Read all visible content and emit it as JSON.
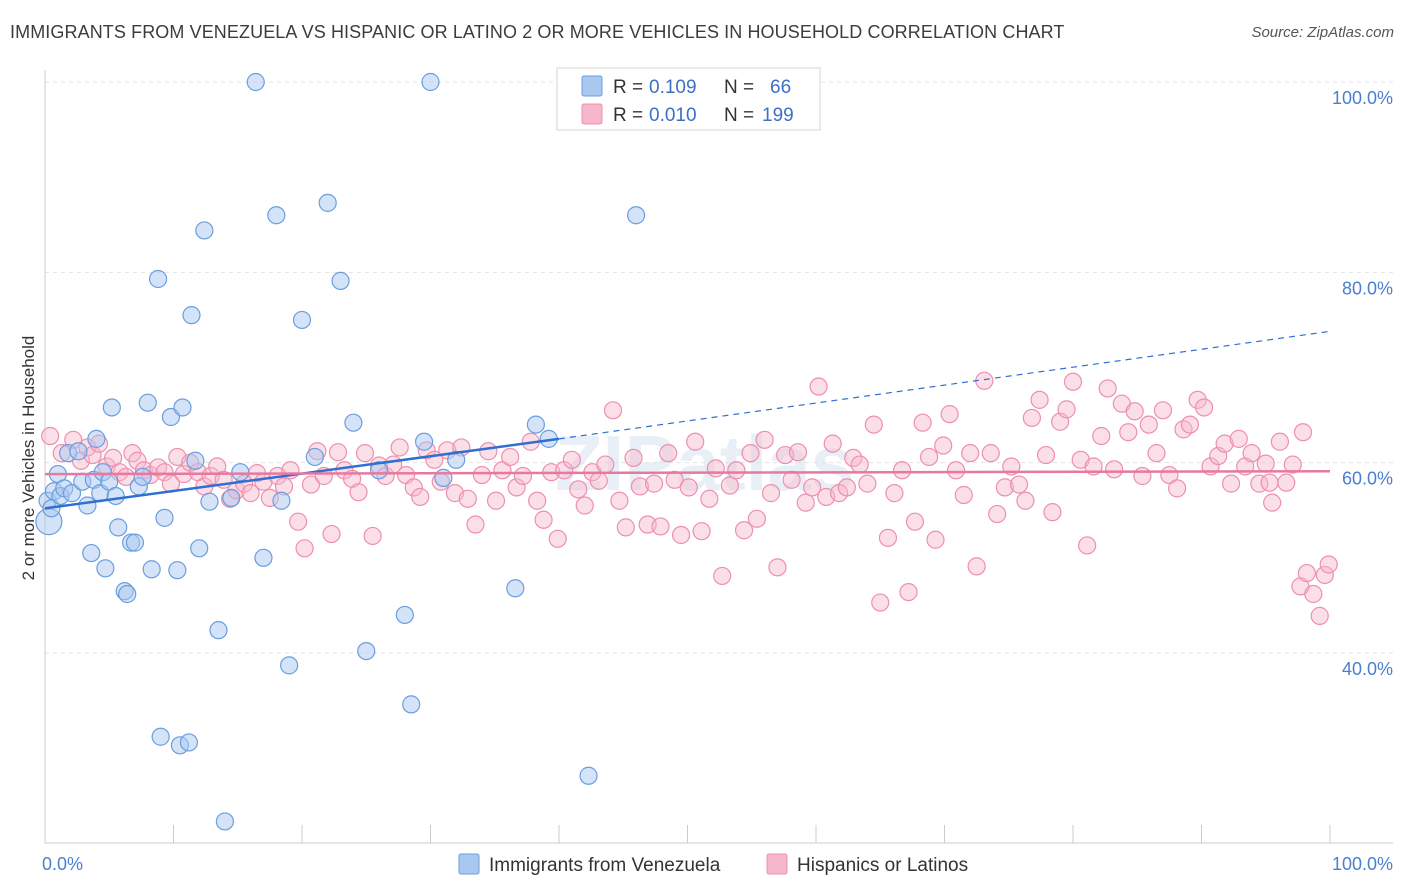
{
  "header": {
    "title": "IMMIGRANTS FROM VENEZUELA VS HISPANIC OR LATINO 2 OR MORE VEHICLES IN HOUSEHOLD CORRELATION CHART",
    "source": "Source: ZipAtlas.com"
  },
  "watermark": "ZIPatlas",
  "legend": {
    "rows": [
      {
        "r_label": "R =",
        "r_value": "0.109",
        "n_label": "N =",
        "n_value": "66",
        "color": "#a9c8f0"
      },
      {
        "r_label": "R =",
        "r_value": "0.010",
        "n_label": "N =",
        "n_value": "199",
        "color": "#f7b7cb"
      }
    ]
  },
  "bottom_legend": [
    {
      "label": "Immigrants from Venezuela",
      "color": "#a9c8f0"
    },
    {
      "label": "Hispanics or Latinos",
      "color": "#f7b7cb"
    }
  ],
  "chart_data": {
    "type": "scatter",
    "title": "IMMIGRANTS FROM VENEZUELA VS HISPANIC OR LATINO 2 OR MORE VEHICLES IN HOUSEHOLD CORRELATION CHART",
    "xlabel": "",
    "ylabel": "2 or more Vehicles in Household",
    "xlim": [
      0,
      100
    ],
    "ylim": [
      20,
      102
    ],
    "x_tick_labels": [
      "0.0%",
      "100.0%"
    ],
    "y_ticks": [
      40,
      60,
      80,
      100
    ],
    "y_tick_labels": [
      "40.0%",
      "60.0%",
      "80.0%",
      "100.0%"
    ],
    "grid": true,
    "colors": {
      "blue_fill": "#a9c8f0",
      "blue_stroke": "#6a9ee0",
      "blue_line": "#2f6fd0",
      "pink_fill": "#f7b7cb",
      "pink_stroke": "#ee8fae",
      "pink_line": "#e6799f"
    },
    "series": [
      {
        "name": "Immigrants from Venezuela",
        "r": 0.109,
        "n": 66,
        "trend": {
          "x0": 0,
          "y0": 55.2,
          "x1": 40,
          "y1": 62.5,
          "dashed_to_x": 100,
          "dashed_to_y": 73.8
        },
        "points": [
          [
            0.3,
            53.8
          ],
          [
            0.2,
            56.0
          ],
          [
            0.5,
            55.2
          ],
          [
            0.7,
            57.0
          ],
          [
            1.0,
            58.8
          ],
          [
            1.2,
            56.5
          ],
          [
            1.5,
            57.3
          ],
          [
            1.8,
            61.0
          ],
          [
            2.1,
            56.8
          ],
          [
            2.6,
            61.2
          ],
          [
            2.9,
            58.0
          ],
          [
            3.3,
            55.5
          ],
          [
            3.6,
            50.5
          ],
          [
            3.8,
            58.2
          ],
          [
            4.0,
            62.5
          ],
          [
            4.3,
            56.8
          ],
          [
            4.5,
            59.0
          ],
          [
            4.7,
            48.9
          ],
          [
            5.0,
            58.0
          ],
          [
            5.2,
            65.8
          ],
          [
            5.5,
            56.5
          ],
          [
            5.7,
            53.2
          ],
          [
            6.2,
            46.5
          ],
          [
            6.4,
            46.2
          ],
          [
            6.7,
            51.6
          ],
          [
            7.0,
            51.6
          ],
          [
            7.3,
            57.5
          ],
          [
            7.6,
            58.5
          ],
          [
            8.0,
            66.3
          ],
          [
            8.3,
            48.8
          ],
          [
            8.8,
            79.3
          ],
          [
            9.3,
            54.2
          ],
          [
            9.8,
            64.8
          ],
          [
            10.3,
            48.7
          ],
          [
            10.7,
            65.8
          ],
          [
            11.4,
            75.5
          ],
          [
            11.7,
            60.2
          ],
          [
            12.0,
            51.0
          ],
          [
            12.4,
            84.4
          ],
          [
            12.8,
            55.9
          ],
          [
            13.5,
            42.4
          ],
          [
            14.5,
            56.3
          ],
          [
            15.2,
            59.0
          ],
          [
            16.4,
            100.0
          ],
          [
            17.0,
            50.0
          ],
          [
            18.0,
            86.0
          ],
          [
            18.4,
            56.0
          ],
          [
            19.0,
            38.7
          ],
          [
            20.0,
            75.0
          ],
          [
            21.0,
            60.6
          ],
          [
            22.0,
            87.3
          ],
          [
            23.0,
            79.1
          ],
          [
            24.0,
            64.2
          ],
          [
            25.0,
            40.2
          ],
          [
            26.0,
            59.2
          ],
          [
            28.0,
            44.0
          ],
          [
            28.5,
            34.6
          ],
          [
            29.5,
            62.2
          ],
          [
            30.0,
            100.0
          ],
          [
            31.0,
            58.4
          ],
          [
            32.0,
            60.3
          ],
          [
            38.2,
            64.0
          ],
          [
            39.2,
            62.5
          ],
          [
            36.6,
            46.8
          ],
          [
            42.3,
            27.1
          ],
          [
            46.0,
            86.0
          ],
          [
            9.0,
            31.2
          ],
          [
            10.5,
            30.3
          ],
          [
            11.2,
            30.6
          ],
          [
            14.0,
            22.3
          ]
        ]
      },
      {
        "name": "Hispanics or Latinos",
        "r": 0.01,
        "n": 199,
        "trend": {
          "x0": 0,
          "y0": 58.8,
          "x1": 100,
          "y1": 59.1
        },
        "points": [
          [
            0.4,
            62.8
          ],
          [
            1.3,
            61.0
          ],
          [
            2.2,
            62.4
          ],
          [
            2.8,
            60.2
          ],
          [
            3.3,
            61.6
          ],
          [
            3.7,
            60.8
          ],
          [
            4.2,
            62.0
          ],
          [
            4.8,
            59.6
          ],
          [
            5.3,
            60.5
          ],
          [
            5.8,
            59.0
          ],
          [
            6.3,
            58.5
          ],
          [
            6.8,
            61.0
          ],
          [
            7.2,
            60.2
          ],
          [
            7.7,
            59.2
          ],
          [
            8.2,
            58.7
          ],
          [
            8.8,
            59.5
          ],
          [
            9.3,
            59.0
          ],
          [
            9.8,
            57.8
          ],
          [
            10.3,
            60.6
          ],
          [
            10.8,
            58.8
          ],
          [
            11.3,
            60.0
          ],
          [
            11.9,
            59.0
          ],
          [
            12.4,
            57.5
          ],
          [
            12.9,
            58.6
          ],
          [
            13.4,
            59.6
          ],
          [
            13.9,
            58.2
          ],
          [
            14.4,
            56.2
          ],
          [
            14.9,
            57.1
          ],
          [
            15.5,
            57.8
          ],
          [
            16.0,
            56.8
          ],
          [
            16.5,
            58.9
          ],
          [
            17.0,
            58.0
          ],
          [
            17.5,
            56.3
          ],
          [
            18.1,
            58.6
          ],
          [
            18.6,
            57.5
          ],
          [
            19.1,
            59.2
          ],
          [
            19.7,
            53.8
          ],
          [
            20.2,
            51.0
          ],
          [
            20.7,
            57.7
          ],
          [
            21.2,
            61.2
          ],
          [
            21.7,
            58.6
          ],
          [
            22.3,
            52.5
          ],
          [
            22.8,
            61.1
          ],
          [
            23.3,
            59.2
          ],
          [
            23.9,
            58.3
          ],
          [
            24.4,
            56.9
          ],
          [
            24.9,
            61.0
          ],
          [
            25.5,
            52.3
          ],
          [
            26.0,
            59.7
          ],
          [
            26.5,
            58.6
          ],
          [
            27.1,
            59.8
          ],
          [
            27.6,
            61.6
          ],
          [
            28.1,
            58.7
          ],
          [
            28.7,
            57.4
          ],
          [
            29.2,
            56.4
          ],
          [
            29.7,
            61.3
          ],
          [
            30.3,
            60.3
          ],
          [
            30.8,
            58.0
          ],
          [
            31.3,
            61.3
          ],
          [
            31.9,
            56.8
          ],
          [
            32.4,
            61.6
          ],
          [
            32.9,
            56.2
          ],
          [
            33.5,
            53.5
          ],
          [
            34.0,
            58.7
          ],
          [
            34.5,
            61.2
          ],
          [
            35.1,
            56.0
          ],
          [
            35.6,
            59.2
          ],
          [
            36.2,
            60.6
          ],
          [
            36.7,
            57.4
          ],
          [
            37.2,
            58.6
          ],
          [
            37.8,
            62.2
          ],
          [
            38.3,
            56.0
          ],
          [
            38.8,
            54.0
          ],
          [
            39.4,
            59.0
          ],
          [
            39.9,
            52.0
          ],
          [
            40.4,
            59.2
          ],
          [
            41.0,
            60.3
          ],
          [
            41.5,
            57.2
          ],
          [
            42.0,
            55.5
          ],
          [
            42.6,
            59.0
          ],
          [
            43.1,
            58.1
          ],
          [
            43.6,
            59.8
          ],
          [
            44.2,
            65.5
          ],
          [
            44.7,
            56.0
          ],
          [
            45.2,
            53.2
          ],
          [
            45.8,
            60.5
          ],
          [
            46.3,
            57.5
          ],
          [
            46.9,
            53.5
          ],
          [
            47.4,
            57.8
          ],
          [
            47.9,
            53.3
          ],
          [
            48.5,
            61.0
          ],
          [
            49.0,
            58.2
          ],
          [
            49.5,
            52.4
          ],
          [
            50.1,
            57.4
          ],
          [
            50.6,
            62.2
          ],
          [
            51.1,
            52.8
          ],
          [
            51.7,
            56.2
          ],
          [
            52.2,
            59.4
          ],
          [
            52.7,
            48.1
          ],
          [
            53.3,
            57.6
          ],
          [
            53.8,
            59.2
          ],
          [
            54.4,
            52.9
          ],
          [
            54.9,
            61.0
          ],
          [
            55.4,
            54.1
          ],
          [
            56.0,
            62.4
          ],
          [
            56.5,
            56.8
          ],
          [
            57.0,
            49.0
          ],
          [
            57.6,
            60.8
          ],
          [
            58.1,
            58.2
          ],
          [
            58.6,
            61.1
          ],
          [
            59.2,
            55.8
          ],
          [
            59.7,
            57.4
          ],
          [
            60.2,
            68.0
          ],
          [
            60.8,
            56.4
          ],
          [
            61.3,
            62.0
          ],
          [
            61.8,
            56.8
          ],
          [
            62.4,
            57.4
          ],
          [
            62.9,
            60.5
          ],
          [
            63.4,
            59.8
          ],
          [
            64.0,
            57.8
          ],
          [
            64.5,
            64.0
          ],
          [
            65.0,
            45.3
          ],
          [
            65.6,
            52.1
          ],
          [
            66.1,
            56.8
          ],
          [
            66.7,
            59.2
          ],
          [
            67.2,
            46.4
          ],
          [
            67.7,
            53.8
          ],
          [
            68.3,
            64.2
          ],
          [
            68.8,
            60.6
          ],
          [
            69.3,
            51.9
          ],
          [
            69.9,
            61.8
          ],
          [
            70.4,
            65.1
          ],
          [
            70.9,
            59.2
          ],
          [
            71.5,
            56.6
          ],
          [
            72.0,
            61.0
          ],
          [
            72.5,
            49.1
          ],
          [
            73.1,
            68.6
          ],
          [
            73.6,
            61.0
          ],
          [
            74.1,
            54.6
          ],
          [
            74.7,
            57.4
          ],
          [
            75.2,
            59.6
          ],
          [
            75.8,
            57.7
          ],
          [
            76.3,
            56.0
          ],
          [
            76.8,
            64.7
          ],
          [
            77.4,
            66.6
          ],
          [
            77.9,
            60.8
          ],
          [
            78.4,
            54.8
          ],
          [
            79.0,
            64.3
          ],
          [
            79.5,
            65.6
          ],
          [
            80.0,
            68.5
          ],
          [
            80.6,
            60.3
          ],
          [
            81.1,
            51.3
          ],
          [
            81.6,
            59.6
          ],
          [
            82.2,
            62.8
          ],
          [
            82.7,
            67.8
          ],
          [
            83.2,
            59.3
          ],
          [
            83.8,
            66.2
          ],
          [
            84.3,
            63.2
          ],
          [
            84.8,
            65.4
          ],
          [
            85.4,
            58.6
          ],
          [
            85.9,
            64.0
          ],
          [
            86.5,
            61.0
          ],
          [
            87.0,
            65.5
          ],
          [
            87.5,
            58.7
          ],
          [
            88.1,
            57.3
          ],
          [
            88.6,
            63.5
          ],
          [
            89.1,
            64.0
          ],
          [
            89.7,
            66.6
          ],
          [
            90.2,
            65.8
          ],
          [
            90.7,
            59.6
          ],
          [
            91.3,
            60.7
          ],
          [
            91.8,
            62.0
          ],
          [
            92.3,
            57.8
          ],
          [
            92.9,
            62.5
          ],
          [
            93.4,
            59.6
          ],
          [
            93.9,
            61.0
          ],
          [
            94.5,
            57.8
          ],
          [
            95.0,
            59.9
          ],
          [
            95.5,
            55.8
          ],
          [
            96.1,
            62.2
          ],
          [
            96.6,
            57.9
          ],
          [
            97.1,
            59.8
          ],
          [
            97.7,
            47.0
          ],
          [
            98.2,
            48.4
          ],
          [
            98.7,
            46.2
          ],
          [
            99.2,
            43.9
          ],
          [
            99.6,
            48.2
          ],
          [
            99.9,
            49.3
          ],
          [
            97.9,
            63.2
          ],
          [
            95.3,
            57.9
          ]
        ]
      }
    ]
  }
}
